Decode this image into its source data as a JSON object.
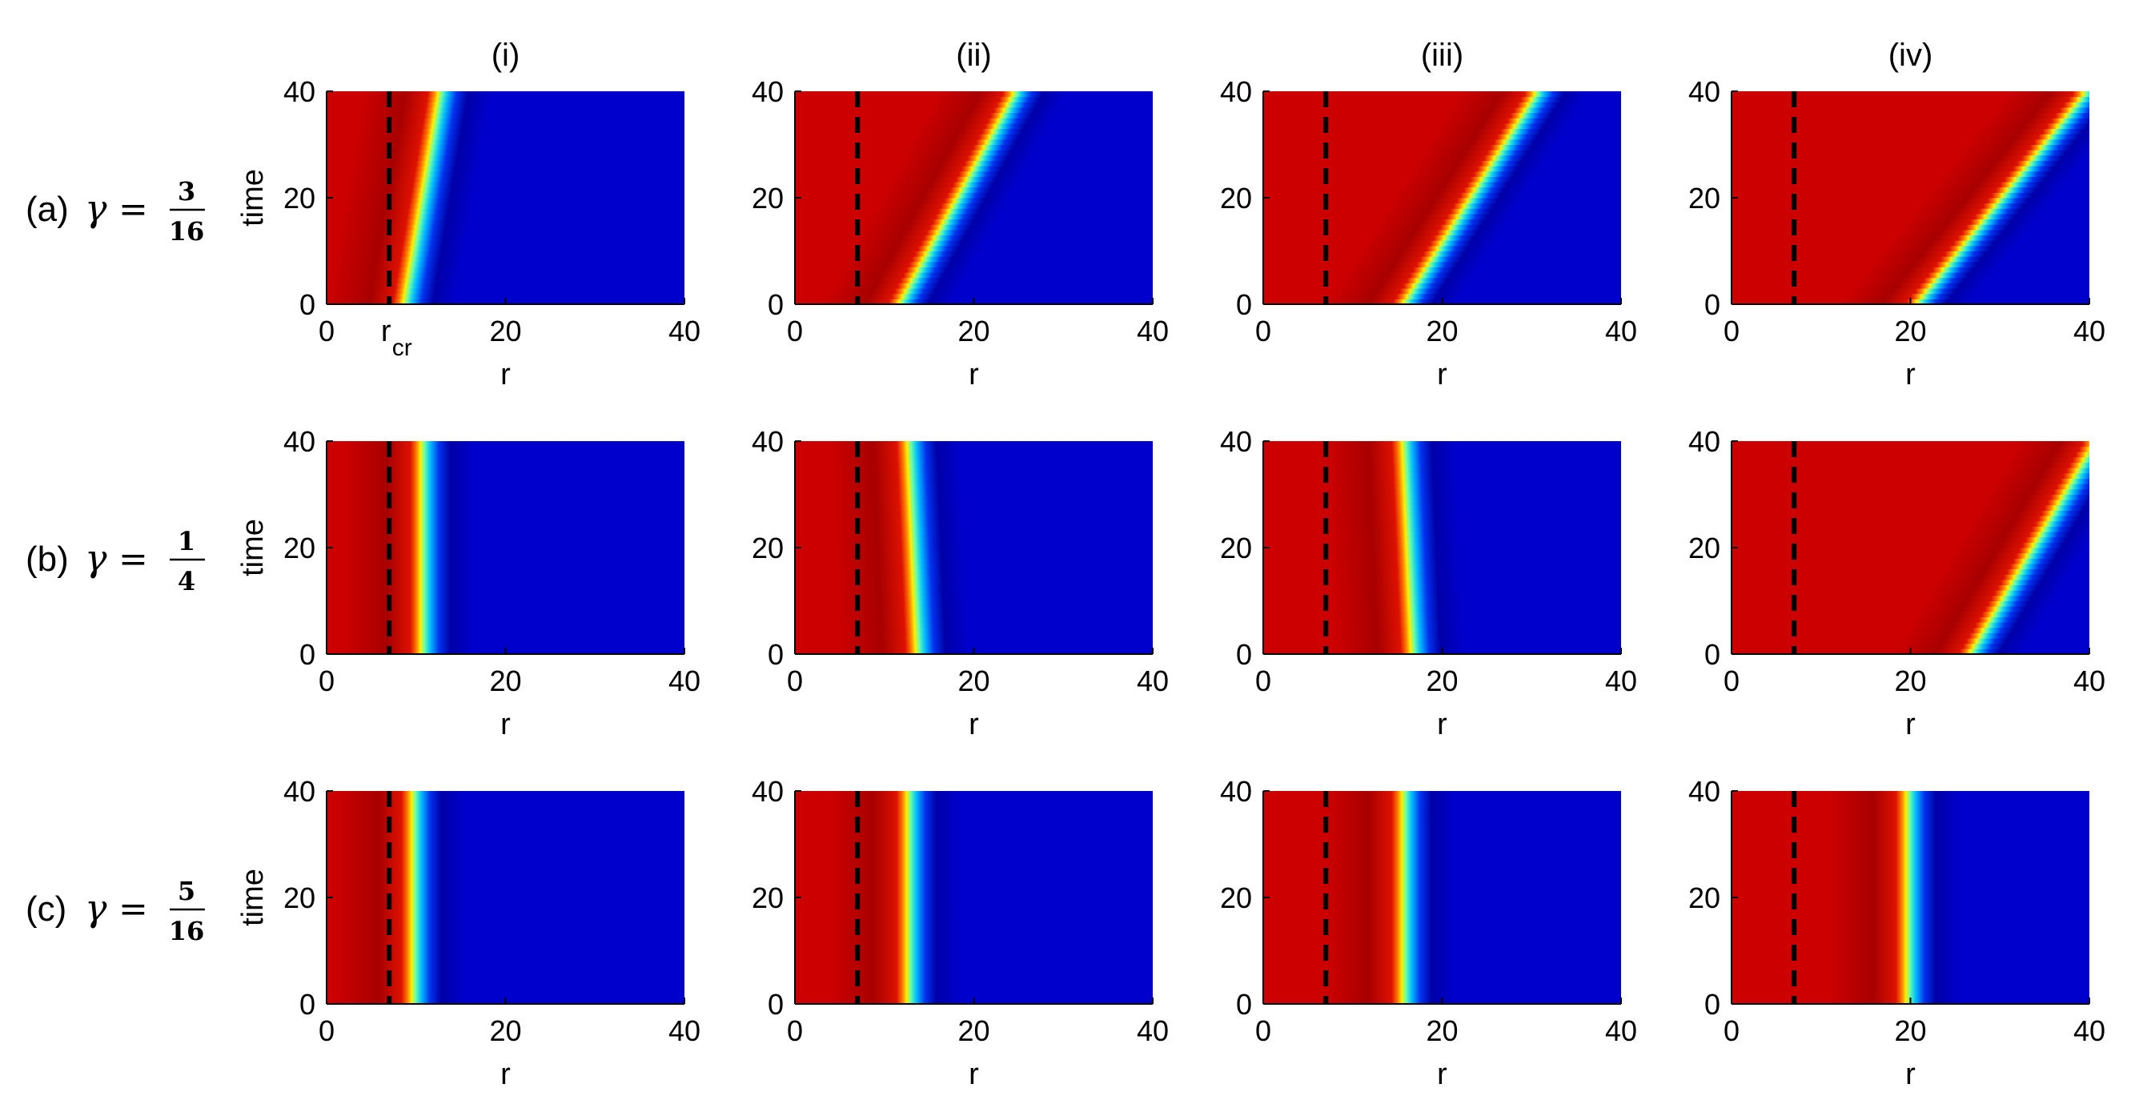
{
  "columns": [
    "(i)",
    "(ii)",
    "(iii)",
    "(iv)"
  ],
  "rows": [
    {
      "prefix": "(a)",
      "gamma_num": "3",
      "gamma_den": "16"
    },
    {
      "prefix": "(b)",
      "gamma_num": "1",
      "gamma_den": "4"
    },
    {
      "prefix": "(c)",
      "gamma_num": "5",
      "gamma_den": "16"
    }
  ],
  "symbols": {
    "gamma": "γ",
    "equals": "="
  },
  "critical_label": {
    "main": "r",
    "sub": "cr"
  },
  "colors": {
    "red": "#cc0000",
    "dark_red": "#a80000",
    "blue": "#0000cc",
    "dark_blue": "#0000a8",
    "dashed_line": "#000000"
  },
  "chart_data": {
    "type": "heatmap",
    "layout": "3x4 grid of heatmaps",
    "xlabel": "r",
    "ylabel": "time",
    "xlim": [
      0,
      40
    ],
    "ylim": [
      0,
      40
    ],
    "xticks": [
      0,
      20,
      40
    ],
    "yticks": [
      0,
      20,
      40
    ],
    "r_cr": 7,
    "panels": [
      {
        "row": "(a)",
        "col": "(i)",
        "front_r_at_t0": 8,
        "front_r_at_t40": 12
      },
      {
        "row": "(a)",
        "col": "(ii)",
        "front_r_at_t0": 11,
        "front_r_at_t40": 24
      },
      {
        "row": "(a)",
        "col": "(iii)",
        "front_r_at_t0": 15,
        "front_r_at_t40": 30
      },
      {
        "row": "(a)",
        "col": "(iv)",
        "front_r_at_t0": 20,
        "front_r_at_t40": 39
      },
      {
        "row": "(b)",
        "col": "(i)",
        "front_r_at_t0": 10,
        "front_r_at_t40": 10
      },
      {
        "row": "(b)",
        "col": "(ii)",
        "front_r_at_t0": 13,
        "front_r_at_t40": 12
      },
      {
        "row": "(b)",
        "col": "(iii)",
        "front_r_at_t0": 16,
        "front_r_at_t40": 15
      },
      {
        "row": "(b)",
        "col": "(iv)",
        "front_r_at_t0": 26,
        "front_r_at_t40": 40
      },
      {
        "row": "(c)",
        "col": "(i)",
        "front_r_at_t0": 9,
        "front_r_at_t40": 9
      },
      {
        "row": "(c)",
        "col": "(ii)",
        "front_r_at_t0": 12,
        "front_r_at_t40": 12
      },
      {
        "row": "(c)",
        "col": "(iii)",
        "front_r_at_t0": 15,
        "front_r_at_t40": 15
      },
      {
        "row": "(c)",
        "col": "(iv)",
        "front_r_at_t0": 19,
        "front_r_at_t40": 19
      }
    ]
  }
}
